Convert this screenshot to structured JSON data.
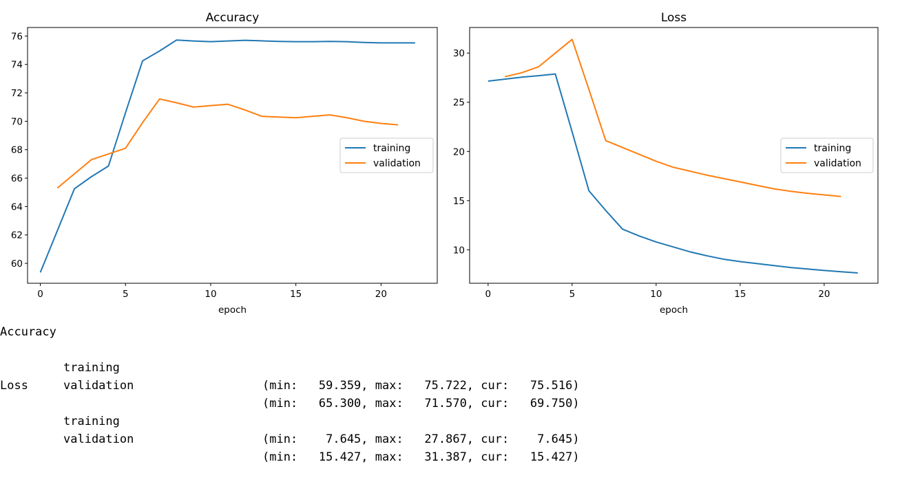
{
  "chart_data": [
    {
      "type": "line",
      "title": "Accuracy",
      "xlabel": "epoch",
      "ylabel": "",
      "xlim": [
        -0.75,
        23.3
      ],
      "ylim": [
        58.6,
        76.6
      ],
      "xticks": [
        0,
        5,
        10,
        15,
        20
      ],
      "yticks": [
        60,
        62,
        64,
        66,
        68,
        70,
        72,
        74,
        76
      ],
      "legend_position": "center-right",
      "series": [
        {
          "name": "training",
          "color": "#1f77b4",
          "x": [
            0,
            1,
            2,
            3,
            4,
            5,
            6,
            7,
            8,
            9,
            10,
            11,
            12,
            13,
            14,
            15,
            16,
            17,
            18,
            19,
            20,
            21,
            22
          ],
          "values": [
            59.36,
            62.3,
            65.25,
            66.1,
            66.85,
            70.6,
            74.25,
            74.95,
            75.72,
            75.65,
            75.6,
            75.65,
            75.7,
            75.66,
            75.62,
            75.6,
            75.6,
            75.62,
            75.6,
            75.55,
            75.52,
            75.52,
            75.52
          ]
        },
        {
          "name": "validation",
          "color": "#ff7f0e",
          "x": [
            1,
            2,
            3,
            4,
            5,
            6,
            7,
            8,
            9,
            10,
            11,
            12,
            13,
            14,
            15,
            16,
            17,
            18,
            19,
            20,
            21
          ],
          "values": [
            65.3,
            66.3,
            67.3,
            67.7,
            68.1,
            69.9,
            71.57,
            71.3,
            71.0,
            71.1,
            71.2,
            70.8,
            70.35,
            70.3,
            70.25,
            70.35,
            70.45,
            70.25,
            70.0,
            69.85,
            69.75
          ]
        }
      ]
    },
    {
      "type": "line",
      "title": "Loss",
      "xlabel": "epoch",
      "ylabel": "",
      "xlim": [
        -1.1,
        23.2
      ],
      "ylim": [
        6.6,
        32.6
      ],
      "xticks": [
        0,
        5,
        10,
        15,
        20
      ],
      "yticks": [
        10,
        15,
        20,
        25,
        30
      ],
      "legend_position": "center-right",
      "series": [
        {
          "name": "training",
          "color": "#1f77b4",
          "x": [
            0,
            1,
            2,
            3,
            4,
            5,
            6,
            7,
            8,
            9,
            10,
            11,
            12,
            13,
            14,
            15,
            16,
            17,
            18,
            19,
            20,
            21,
            22
          ],
          "values": [
            27.15,
            27.35,
            27.55,
            27.7,
            27.87,
            22.0,
            16.0,
            14.0,
            12.1,
            11.4,
            10.8,
            10.3,
            9.8,
            9.4,
            9.05,
            8.8,
            8.6,
            8.4,
            8.2,
            8.05,
            7.9,
            7.77,
            7.645
          ]
        },
        {
          "name": "validation",
          "color": "#ff7f0e",
          "x": [
            1,
            2,
            3,
            4,
            5,
            6,
            7,
            8,
            9,
            10,
            11,
            12,
            13,
            14,
            15,
            16,
            17,
            18,
            19,
            20,
            21
          ],
          "values": [
            27.6,
            28.0,
            28.6,
            30.0,
            31.39,
            26.3,
            21.1,
            20.4,
            19.7,
            19.0,
            18.4,
            18.0,
            17.6,
            17.25,
            16.9,
            16.55,
            16.2,
            15.95,
            15.75,
            15.58,
            15.427
          ]
        }
      ]
    }
  ],
  "stats": {
    "groups": [
      {
        "title": "Accuracy",
        "rows": [
          {
            "name": "training",
            "values": "(min:   59.359, max:   75.722, cur:   75.516)"
          },
          {
            "name": "validation",
            "values": "(min:   65.300, max:   71.570, cur:   69.750)"
          }
        ]
      },
      {
        "title": "Loss",
        "rows": [
          {
            "name": "training",
            "values": "(min:    7.645, max:   27.867, cur:    7.645)"
          },
          {
            "name": "validation",
            "values": "(min:   15.427, max:   31.387, cur:   15.427)"
          }
        ]
      }
    ]
  }
}
